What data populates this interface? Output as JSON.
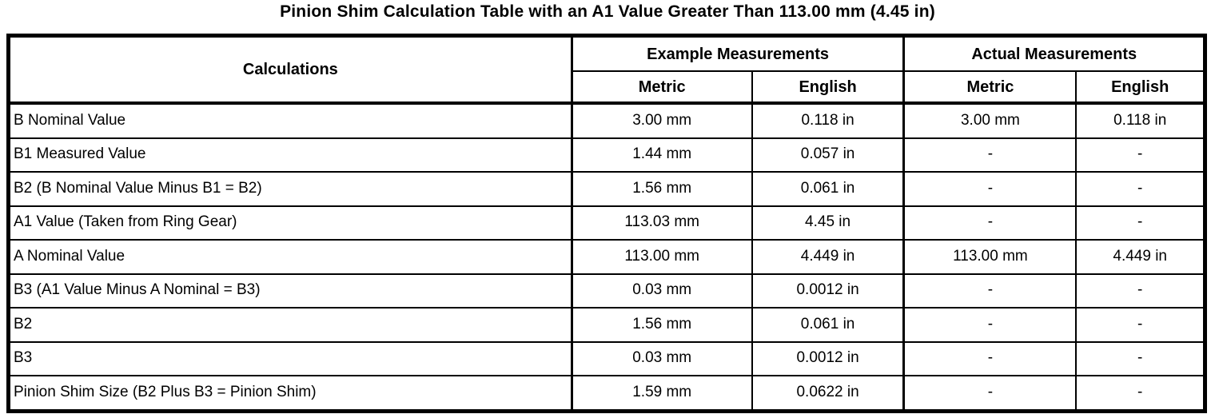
{
  "title": "Pinion Shim Calculation Table with an A1 Value Greater Than 113.00 mm (4.45 in)",
  "table": {
    "header": {
      "calculations": "Calculations",
      "example_group": "Example Measurements",
      "actual_group": "Actual Measurements",
      "metric_label": "Metric",
      "english_label": "English"
    },
    "rows": [
      {
        "label": "B Nominal Value",
        "example_metric": "3.00 mm",
        "example_english": "0.118 in",
        "actual_metric": "3.00 mm",
        "actual_english": "0.118 in"
      },
      {
        "label": "B1 Measured Value",
        "example_metric": "1.44 mm",
        "example_english": "0.057 in",
        "actual_metric": "-",
        "actual_english": "-"
      },
      {
        "label": "B2 (B Nominal Value Minus B1 = B2)",
        "example_metric": "1.56 mm",
        "example_english": "0.061 in",
        "actual_metric": "-",
        "actual_english": "-"
      },
      {
        "label": "A1 Value (Taken from Ring Gear)",
        "example_metric": "113.03 mm",
        "example_english": "4.45 in",
        "actual_metric": "-",
        "actual_english": "-"
      },
      {
        "label": "A Nominal Value",
        "example_metric": "113.00 mm",
        "example_english": "4.449 in",
        "actual_metric": "113.00 mm",
        "actual_english": "4.449 in"
      },
      {
        "label": "B3 (A1 Value Minus A Nominal = B3)",
        "example_metric": "0.03 mm",
        "example_english": "0.0012 in",
        "actual_metric": "-",
        "actual_english": "-"
      },
      {
        "label": "B2",
        "example_metric": "1.56 mm",
        "example_english": "0.061 in",
        "actual_metric": "-",
        "actual_english": "-"
      },
      {
        "label": "B3",
        "example_metric": "0.03 mm",
        "example_english": "0.0012 in",
        "actual_metric": "-",
        "actual_english": "-"
      },
      {
        "label": "Pinion Shim Size (B2 Plus B3 = Pinion Shim)",
        "example_metric": "1.59 mm",
        "example_english": "0.0622 in",
        "actual_metric": "-",
        "actual_english": "-"
      }
    ]
  },
  "colors": {
    "border": "#000000",
    "text": "#000000",
    "background": "#ffffff"
  }
}
